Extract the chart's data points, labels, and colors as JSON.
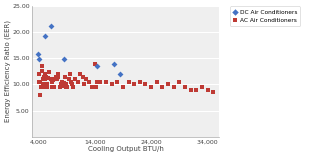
{
  "dc_x": [
    4000,
    4100,
    5200,
    6200,
    8500,
    14500,
    17500,
    18500
  ],
  "dc_y": [
    15.8,
    14.8,
    19.3,
    21.2,
    14.9,
    13.6,
    13.9,
    12.1
  ],
  "ac_x": [
    4100,
    4200,
    4300,
    4400,
    4500,
    4600,
    4700,
    4800,
    4900,
    5000,
    5100,
    5200,
    5300,
    5400,
    5500,
    5600,
    5800,
    6000,
    6200,
    6400,
    6500,
    6600,
    6800,
    7000,
    7200,
    7400,
    7500,
    7600,
    7800,
    8000,
    8200,
    8300,
    8500,
    8700,
    8900,
    9000,
    9200,
    9400,
    9600,
    9800,
    10000,
    10200,
    10500,
    11000,
    11500,
    12000,
    12200,
    12500,
    13000,
    13500,
    14000,
    14200,
    14500,
    15000,
    16000,
    17000,
    18000,
    19000,
    20000,
    21000,
    22000,
    23000,
    24000,
    25000,
    26000,
    27000,
    28000,
    29000,
    30000,
    31000,
    32000,
    33000,
    34000,
    35000
  ],
  "ac_y": [
    10.5,
    12.0,
    8.0,
    10.5,
    9.5,
    12.5,
    13.5,
    10.0,
    11.0,
    11.5,
    9.5,
    11.0,
    12.0,
    11.5,
    9.5,
    10.0,
    11.2,
    12.3,
    11.0,
    10.5,
    9.5,
    10.8,
    9.5,
    11.0,
    11.5,
    11.0,
    12.0,
    11.5,
    9.5,
    10.0,
    10.5,
    9.8,
    10.2,
    11.5,
    9.5,
    10.0,
    9.5,
    11.0,
    12.0,
    10.5,
    10.0,
    9.5,
    11.0,
    10.5,
    12.0,
    11.5,
    10.0,
    11.0,
    10.5,
    9.5,
    14.0,
    9.5,
    10.5,
    10.5,
    10.5,
    10.0,
    10.5,
    9.5,
    10.5,
    10.0,
    10.5,
    10.0,
    9.5,
    10.5,
    9.5,
    10.0,
    9.5,
    10.5,
    9.5,
    9.0,
    9.0,
    9.5,
    9.0,
    8.5
  ],
  "dc_color": "#4472C4",
  "ac_color": "#BE3A34",
  "xlabel": "Cooling Output BTU/h",
  "ylabel": "Energy Efficiency Ratio (EER)",
  "xlim": [
    3000,
    36000
  ],
  "ylim": [
    0,
    25.0
  ],
  "yticks": [
    5.0,
    10.0,
    15.0,
    20.0,
    25.0
  ],
  "xticks": [
    4000,
    14000,
    24000,
    34000
  ],
  "xtick_labels": [
    "4,000",
    "14,000",
    "24,000",
    "34,000"
  ],
  "legend_dc": "DC Air Conditioners",
  "legend_ac": "AC Air Conditioners",
  "plot_bg": "#EFEFEF",
  "fig_bg": "#FFFFFF",
  "grid_color": "#FFFFFF"
}
